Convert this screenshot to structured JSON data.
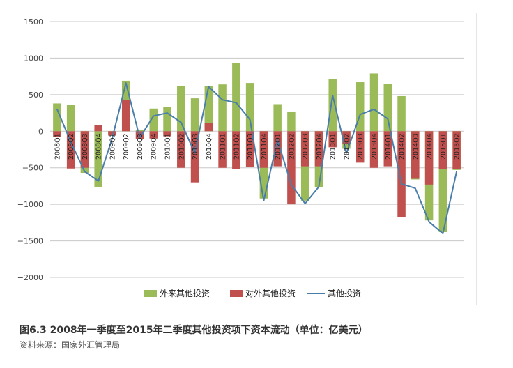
{
  "caption": {
    "title": "图6.3  2008年一季度至2015年二季度其他投资项下资本流动（单位：亿美元）",
    "source": "资料来源：国家外汇管理局"
  },
  "colors": {
    "inflow": "#9bbb59",
    "outflow": "#c0504d",
    "net": "#4a7eaa",
    "grid": "#c8c8c8"
  },
  "chart_data": {
    "type": "bar",
    "categories": [
      "2008Q1",
      "2008Q2",
      "2008Q3",
      "2008Q4",
      "2009Q1",
      "2009Q2",
      "2009Q3",
      "2009Q4",
      "2010Q1",
      "2010Q2",
      "2010Q3",
      "2010Q4",
      "2011Q1",
      "2011Q2",
      "2011Q3",
      "2011Q4",
      "2012Q1",
      "2012Q2",
      "2012Q3",
      "2012Q4",
      "2013Q1",
      "2013Q2",
      "2013Q3",
      "2013Q4",
      "2014Q1",
      "2014Q2",
      "2014Q3",
      "2014Q4",
      "2015Q1",
      "2015Q2"
    ],
    "series": [
      {
        "name": "外来其他投资",
        "type": "bar",
        "values": [
          380,
          360,
          -570,
          -760,
          -40,
          690,
          20,
          310,
          330,
          620,
          450,
          620,
          640,
          930,
          660,
          -920,
          370,
          270,
          -950,
          -770,
          710,
          -240,
          670,
          790,
          650,
          480,
          -660,
          -1220,
          -1380,
          -530
        ]
      },
      {
        "name": "对外其他投资",
        "type": "bar",
        "values": [
          -80,
          -510,
          -500,
          80,
          -60,
          430,
          -110,
          -100,
          -70,
          -500,
          -700,
          110,
          -500,
          -520,
          -490,
          -500,
          -480,
          -1000,
          -480,
          -480,
          -220,
          -170,
          -430,
          -500,
          -480,
          -1180,
          -650,
          -730,
          -520,
          -520
        ]
      },
      {
        "name": "其他投资",
        "type": "line",
        "values": [
          300,
          -150,
          -550,
          -680,
          -100,
          660,
          -90,
          210,
          250,
          120,
          -300,
          610,
          430,
          390,
          160,
          -950,
          -120,
          -730,
          -990,
          -760,
          490,
          -300,
          230,
          300,
          170,
          -720,
          -780,
          -1240,
          -1400,
          -550
        ]
      }
    ],
    "ylim": [
      -2000,
      1500
    ],
    "yticks": [
      1500,
      1000,
      500,
      0,
      -500,
      -1000,
      -1500,
      -2000
    ],
    "grid": true,
    "legend_position": "bottom"
  }
}
